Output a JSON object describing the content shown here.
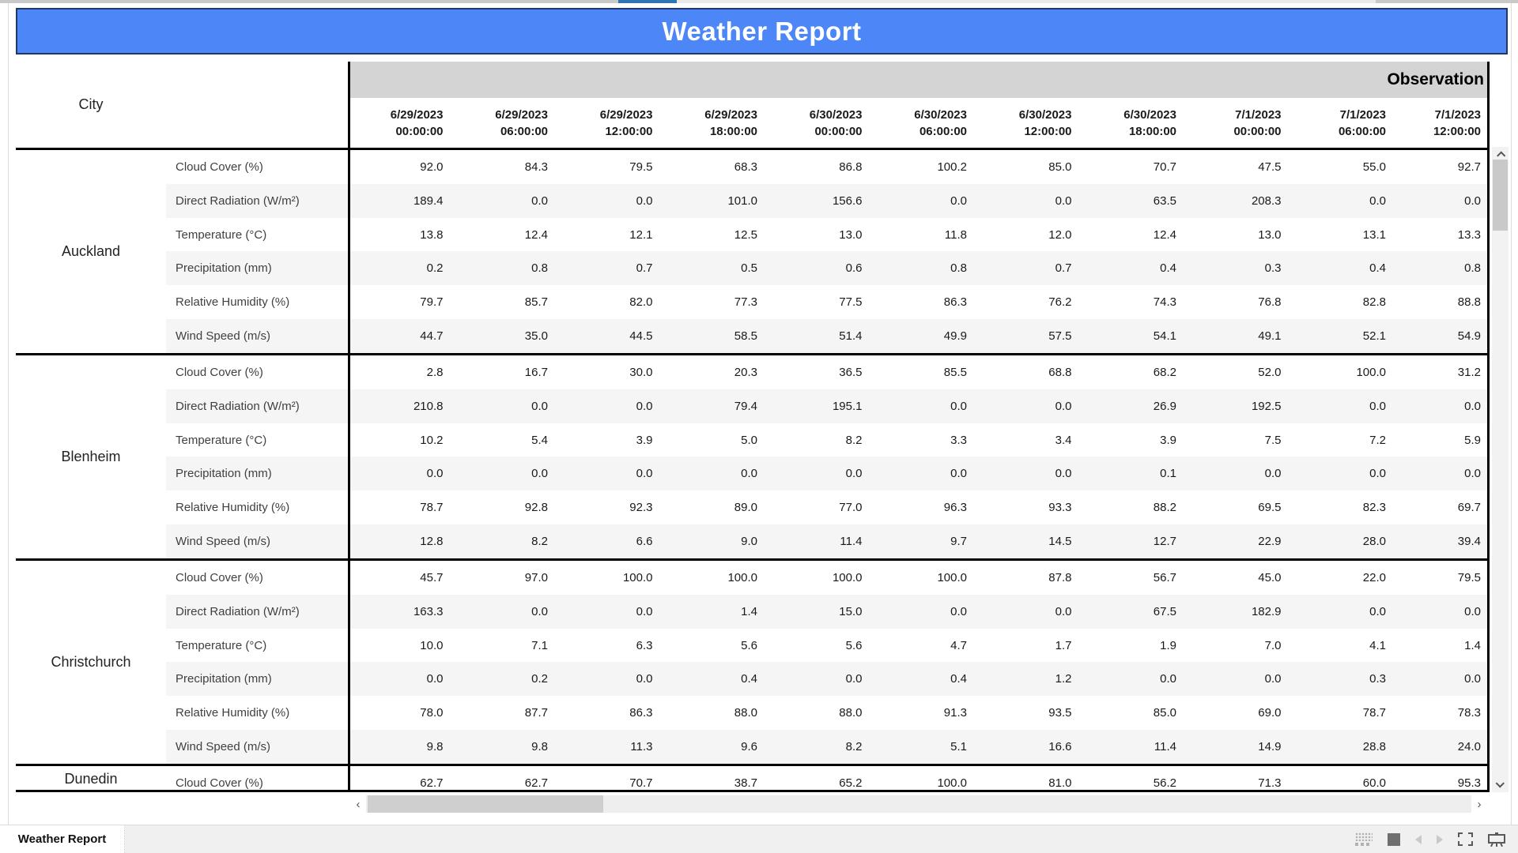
{
  "title": "Weather Report",
  "table": {
    "corner_label": "City",
    "group_header": "Observation",
    "columns": [
      {
        "date": "6/29/2023",
        "time": "00:00:00"
      },
      {
        "date": "6/29/2023",
        "time": "06:00:00"
      },
      {
        "date": "6/29/2023",
        "time": "12:00:00"
      },
      {
        "date": "6/29/2023",
        "time": "18:00:00"
      },
      {
        "date": "6/30/2023",
        "time": "00:00:00"
      },
      {
        "date": "6/30/2023",
        "time": "06:00:00"
      },
      {
        "date": "6/30/2023",
        "time": "12:00:00"
      },
      {
        "date": "6/30/2023",
        "time": "18:00:00"
      },
      {
        "date": "7/1/2023",
        "time": "00:00:00"
      },
      {
        "date": "7/1/2023",
        "time": "06:00:00"
      },
      {
        "date": "7/1/2023",
        "time": "12:00:00"
      }
    ],
    "metrics": [
      "Cloud Cover (%)",
      "Direct Radiation (W/m²)",
      "Temperature (°C)",
      "Precipitation (mm)",
      "Relative Humidity (%)",
      "Wind Speed (m/s)"
    ],
    "cities": [
      {
        "name": "Auckland",
        "rows": [
          [
            "92.0",
            "84.3",
            "79.5",
            "68.3",
            "86.8",
            "100.2",
            "85.0",
            "70.7",
            "47.5",
            "55.0",
            "92.7"
          ],
          [
            "189.4",
            "0.0",
            "0.0",
            "101.0",
            "156.6",
            "0.0",
            "0.0",
            "63.5",
            "208.3",
            "0.0",
            "0.0"
          ],
          [
            "13.8",
            "12.4",
            "12.1",
            "12.5",
            "13.0",
            "11.8",
            "12.0",
            "12.4",
            "13.0",
            "13.1",
            "13.3"
          ],
          [
            "0.2",
            "0.8",
            "0.7",
            "0.5",
            "0.6",
            "0.8",
            "0.7",
            "0.4",
            "0.3",
            "0.4",
            "0.8"
          ],
          [
            "79.7",
            "85.7",
            "82.0",
            "77.3",
            "77.5",
            "86.3",
            "76.2",
            "74.3",
            "76.8",
            "82.8",
            "88.8"
          ],
          [
            "44.7",
            "35.0",
            "44.5",
            "58.5",
            "51.4",
            "49.9",
            "57.5",
            "54.1",
            "49.1",
            "52.1",
            "54.9"
          ]
        ]
      },
      {
        "name": "Blenheim",
        "rows": [
          [
            "2.8",
            "16.7",
            "30.0",
            "20.3",
            "36.5",
            "85.5",
            "68.8",
            "68.2",
            "52.0",
            "100.0",
            "31.2"
          ],
          [
            "210.8",
            "0.0",
            "0.0",
            "79.4",
            "195.1",
            "0.0",
            "0.0",
            "26.9",
            "192.5",
            "0.0",
            "0.0"
          ],
          [
            "10.2",
            "5.4",
            "3.9",
            "5.0",
            "8.2",
            "3.3",
            "3.4",
            "3.9",
            "7.5",
            "7.2",
            "5.9"
          ],
          [
            "0.0",
            "0.0",
            "0.0",
            "0.0",
            "0.0",
            "0.0",
            "0.0",
            "0.1",
            "0.0",
            "0.0",
            "0.0"
          ],
          [
            "78.7",
            "92.8",
            "92.3",
            "89.0",
            "77.0",
            "96.3",
            "93.3",
            "88.2",
            "69.5",
            "82.3",
            "69.7"
          ],
          [
            "12.8",
            "8.2",
            "6.6",
            "9.0",
            "11.4",
            "9.7",
            "14.5",
            "12.7",
            "22.9",
            "28.0",
            "39.4"
          ]
        ]
      },
      {
        "name": "Christchurch",
        "rows": [
          [
            "45.7",
            "97.0",
            "100.0",
            "100.0",
            "100.0",
            "100.0",
            "87.8",
            "56.7",
            "45.0",
            "22.0",
            "79.5"
          ],
          [
            "163.3",
            "0.0",
            "0.0",
            "1.4",
            "15.0",
            "0.0",
            "0.0",
            "67.5",
            "182.9",
            "0.0",
            "0.0"
          ],
          [
            "10.0",
            "7.1",
            "6.3",
            "5.6",
            "5.6",
            "4.7",
            "1.7",
            "1.9",
            "7.0",
            "4.1",
            "1.4"
          ],
          [
            "0.0",
            "0.2",
            "0.0",
            "0.4",
            "0.0",
            "0.4",
            "1.2",
            "0.0",
            "0.0",
            "0.3",
            "0.0"
          ],
          [
            "78.0",
            "87.7",
            "86.3",
            "88.0",
            "88.0",
            "91.3",
            "93.5",
            "85.0",
            "69.0",
            "78.7",
            "78.3"
          ],
          [
            "9.8",
            "9.8",
            "11.3",
            "9.6",
            "8.2",
            "5.1",
            "16.6",
            "11.4",
            "14.9",
            "28.8",
            "24.0"
          ]
        ]
      },
      {
        "name": "Dunedin",
        "rows": [
          [
            "62.7",
            "62.7",
            "70.7",
            "38.7",
            "65.2",
            "100.0",
            "81.0",
            "56.2",
            "71.3",
            "60.0",
            "95.3"
          ]
        ]
      }
    ]
  },
  "bottom_bar": {
    "active_tab": "Weather Report",
    "icons": [
      "filmstrip-icon",
      "grid-view-icon",
      "previous-sheet-icon",
      "next-sheet-icon",
      "fullscreen-icon",
      "presentation-mode-icon"
    ]
  },
  "colors": {
    "title_bg": "#4c86f7",
    "title_border": "#1f3864",
    "title_text": "#ffffff",
    "group_header_bg": "#d4d4d4",
    "row_alt_bg": "#f5f5f5",
    "rule": "#000000",
    "top_strip_accent": "#2e75b6",
    "bottom_bar_bg": "#f0f0f0"
  }
}
